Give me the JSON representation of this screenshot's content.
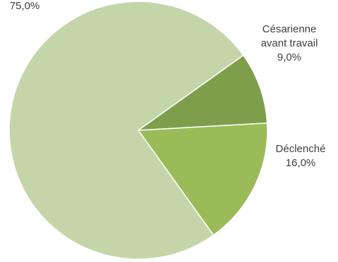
{
  "chart_data": {
    "type": "pie",
    "title": "",
    "start_angle_deg": -35.6,
    "direction": "clockwise",
    "slices": [
      {
        "label_lines": [
          "Césarienne",
          "avant travail"
        ],
        "value": 9.0,
        "value_label": "9,0%",
        "color": "#7f9e4b"
      },
      {
        "label_lines": [
          "Déclenché"
        ],
        "value": 16.0,
        "value_label": "16,0%",
        "color": "#9bbb59"
      },
      {
        "label_lines": [],
        "value": 75.0,
        "value_label": "75,0%",
        "color": "#c4d6a9"
      }
    ]
  }
}
